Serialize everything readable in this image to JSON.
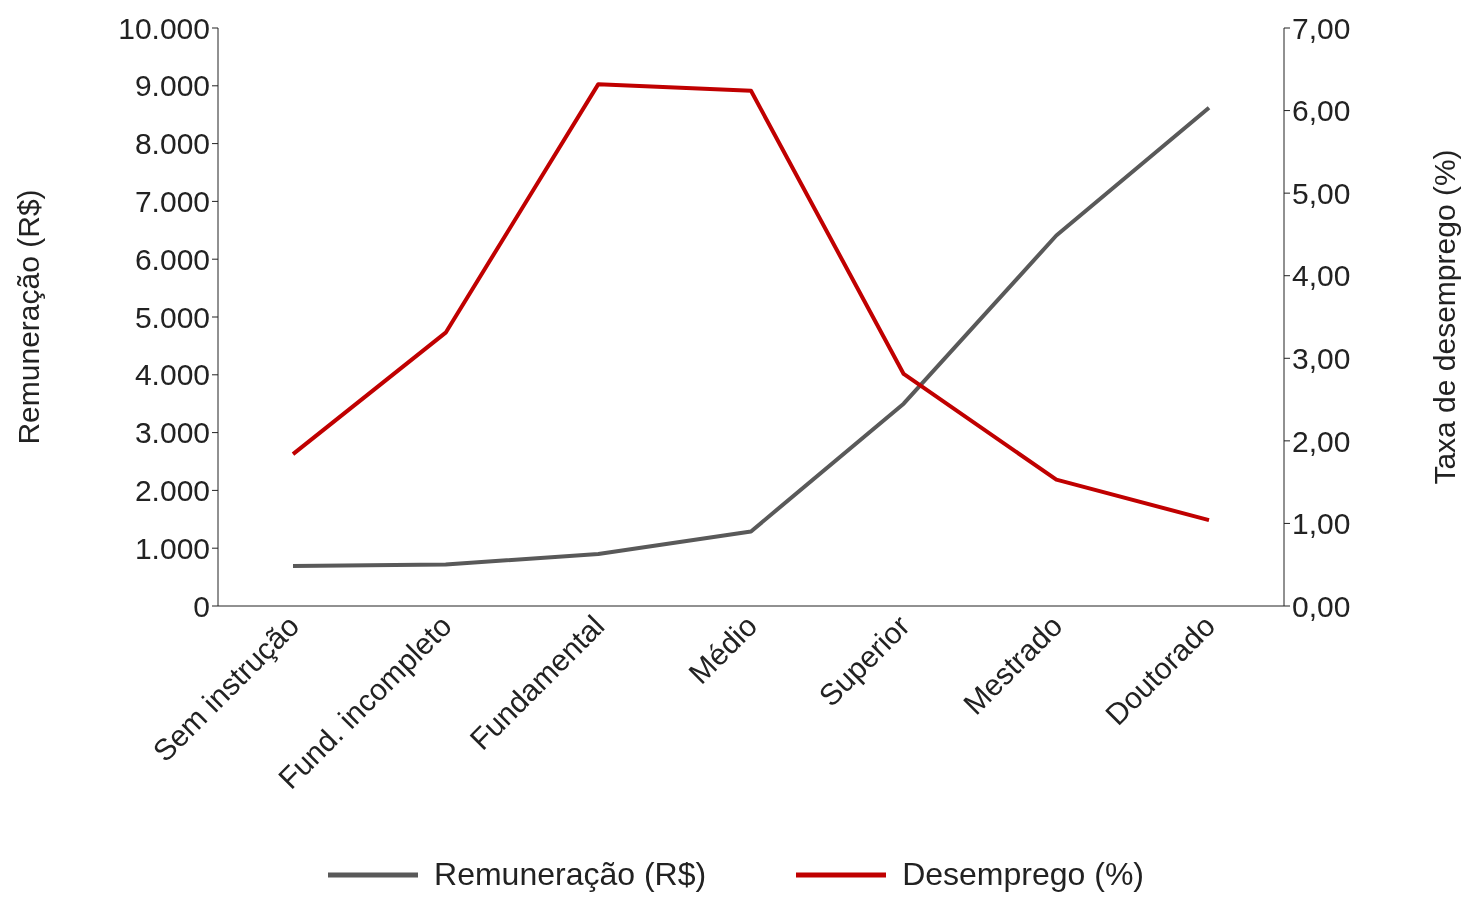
{
  "chart_data": {
    "type": "line",
    "categories": [
      "Sem instrução",
      "Fund. incompleto",
      "Fundamental",
      "Médio",
      "Superior",
      "Mestrado",
      "Doutorado"
    ],
    "ylabel": "Remuneração (R$)",
    "y2label": "Taxa de desemprego (%)",
    "series": [
      {
        "name": "Remuneração (R$)",
        "color": "#595959",
        "values": [
          690,
          720,
          900,
          1290,
          3500,
          6410,
          8620
        ]
      },
      {
        "name": "Desemprego (%)",
        "color": "#c00000",
        "axis": "y2",
        "values": [
          1.84,
          3.31,
          6.32,
          6.24,
          2.81,
          1.53,
          1.04
        ]
      }
    ],
    "ylim": [
      0,
      10000
    ],
    "yticks": [
      0,
      {
        "value": 1000,
        "label": "1.000"
      },
      {
        "value": 2000,
        "label": "2.000"
      },
      {
        "value": 3000,
        "label": "3.000"
      },
      {
        "value": 4000,
        "label": "4.000"
      },
      {
        "value": 5000,
        "label": "5.000"
      },
      {
        "value": 6000,
        "label": "6.000"
      },
      {
        "value": 7000,
        "label": "7.000"
      },
      {
        "value": 8000,
        "label": "8.000"
      },
      {
        "value": 9000,
        "label": "9.000"
      },
      {
        "value": 10000,
        "label": "10.000"
      }
    ],
    "y2lim": [
      0,
      7
    ],
    "y2ticks": [
      {
        "value": 0,
        "label": "0,00"
      },
      {
        "value": 1,
        "label": "1,00"
      },
      {
        "value": 2,
        "label": "2,00"
      },
      {
        "value": 3,
        "label": "3,00"
      },
      {
        "value": 4,
        "label": "4,00"
      },
      {
        "value": 5,
        "label": "5,00"
      },
      {
        "value": 6,
        "label": "6,00"
      },
      {
        "value": 7,
        "label": "7,00"
      }
    ],
    "grid": false,
    "legend": "bottom",
    "marker": "none",
    "line_style": "solid"
  }
}
